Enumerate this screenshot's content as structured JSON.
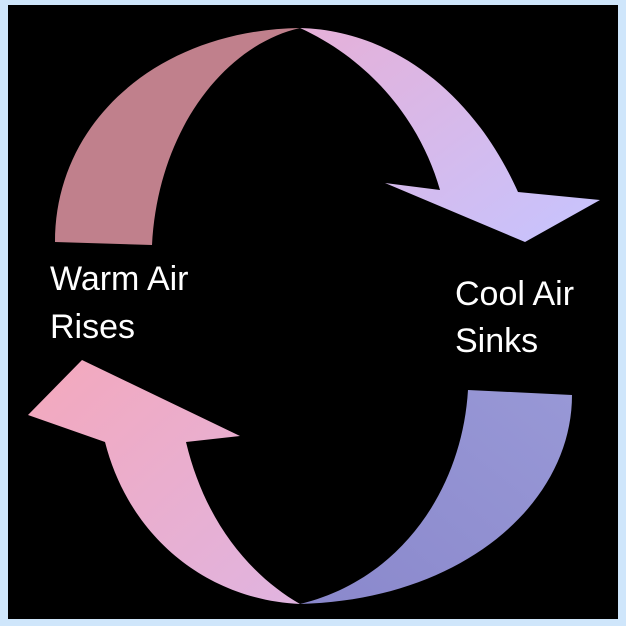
{
  "warm_label": {
    "line1": "Warm Air",
    "line2": "Rises"
  },
  "cool_label": {
    "line1": "Cool Air",
    "line2": "Sinks"
  }
}
